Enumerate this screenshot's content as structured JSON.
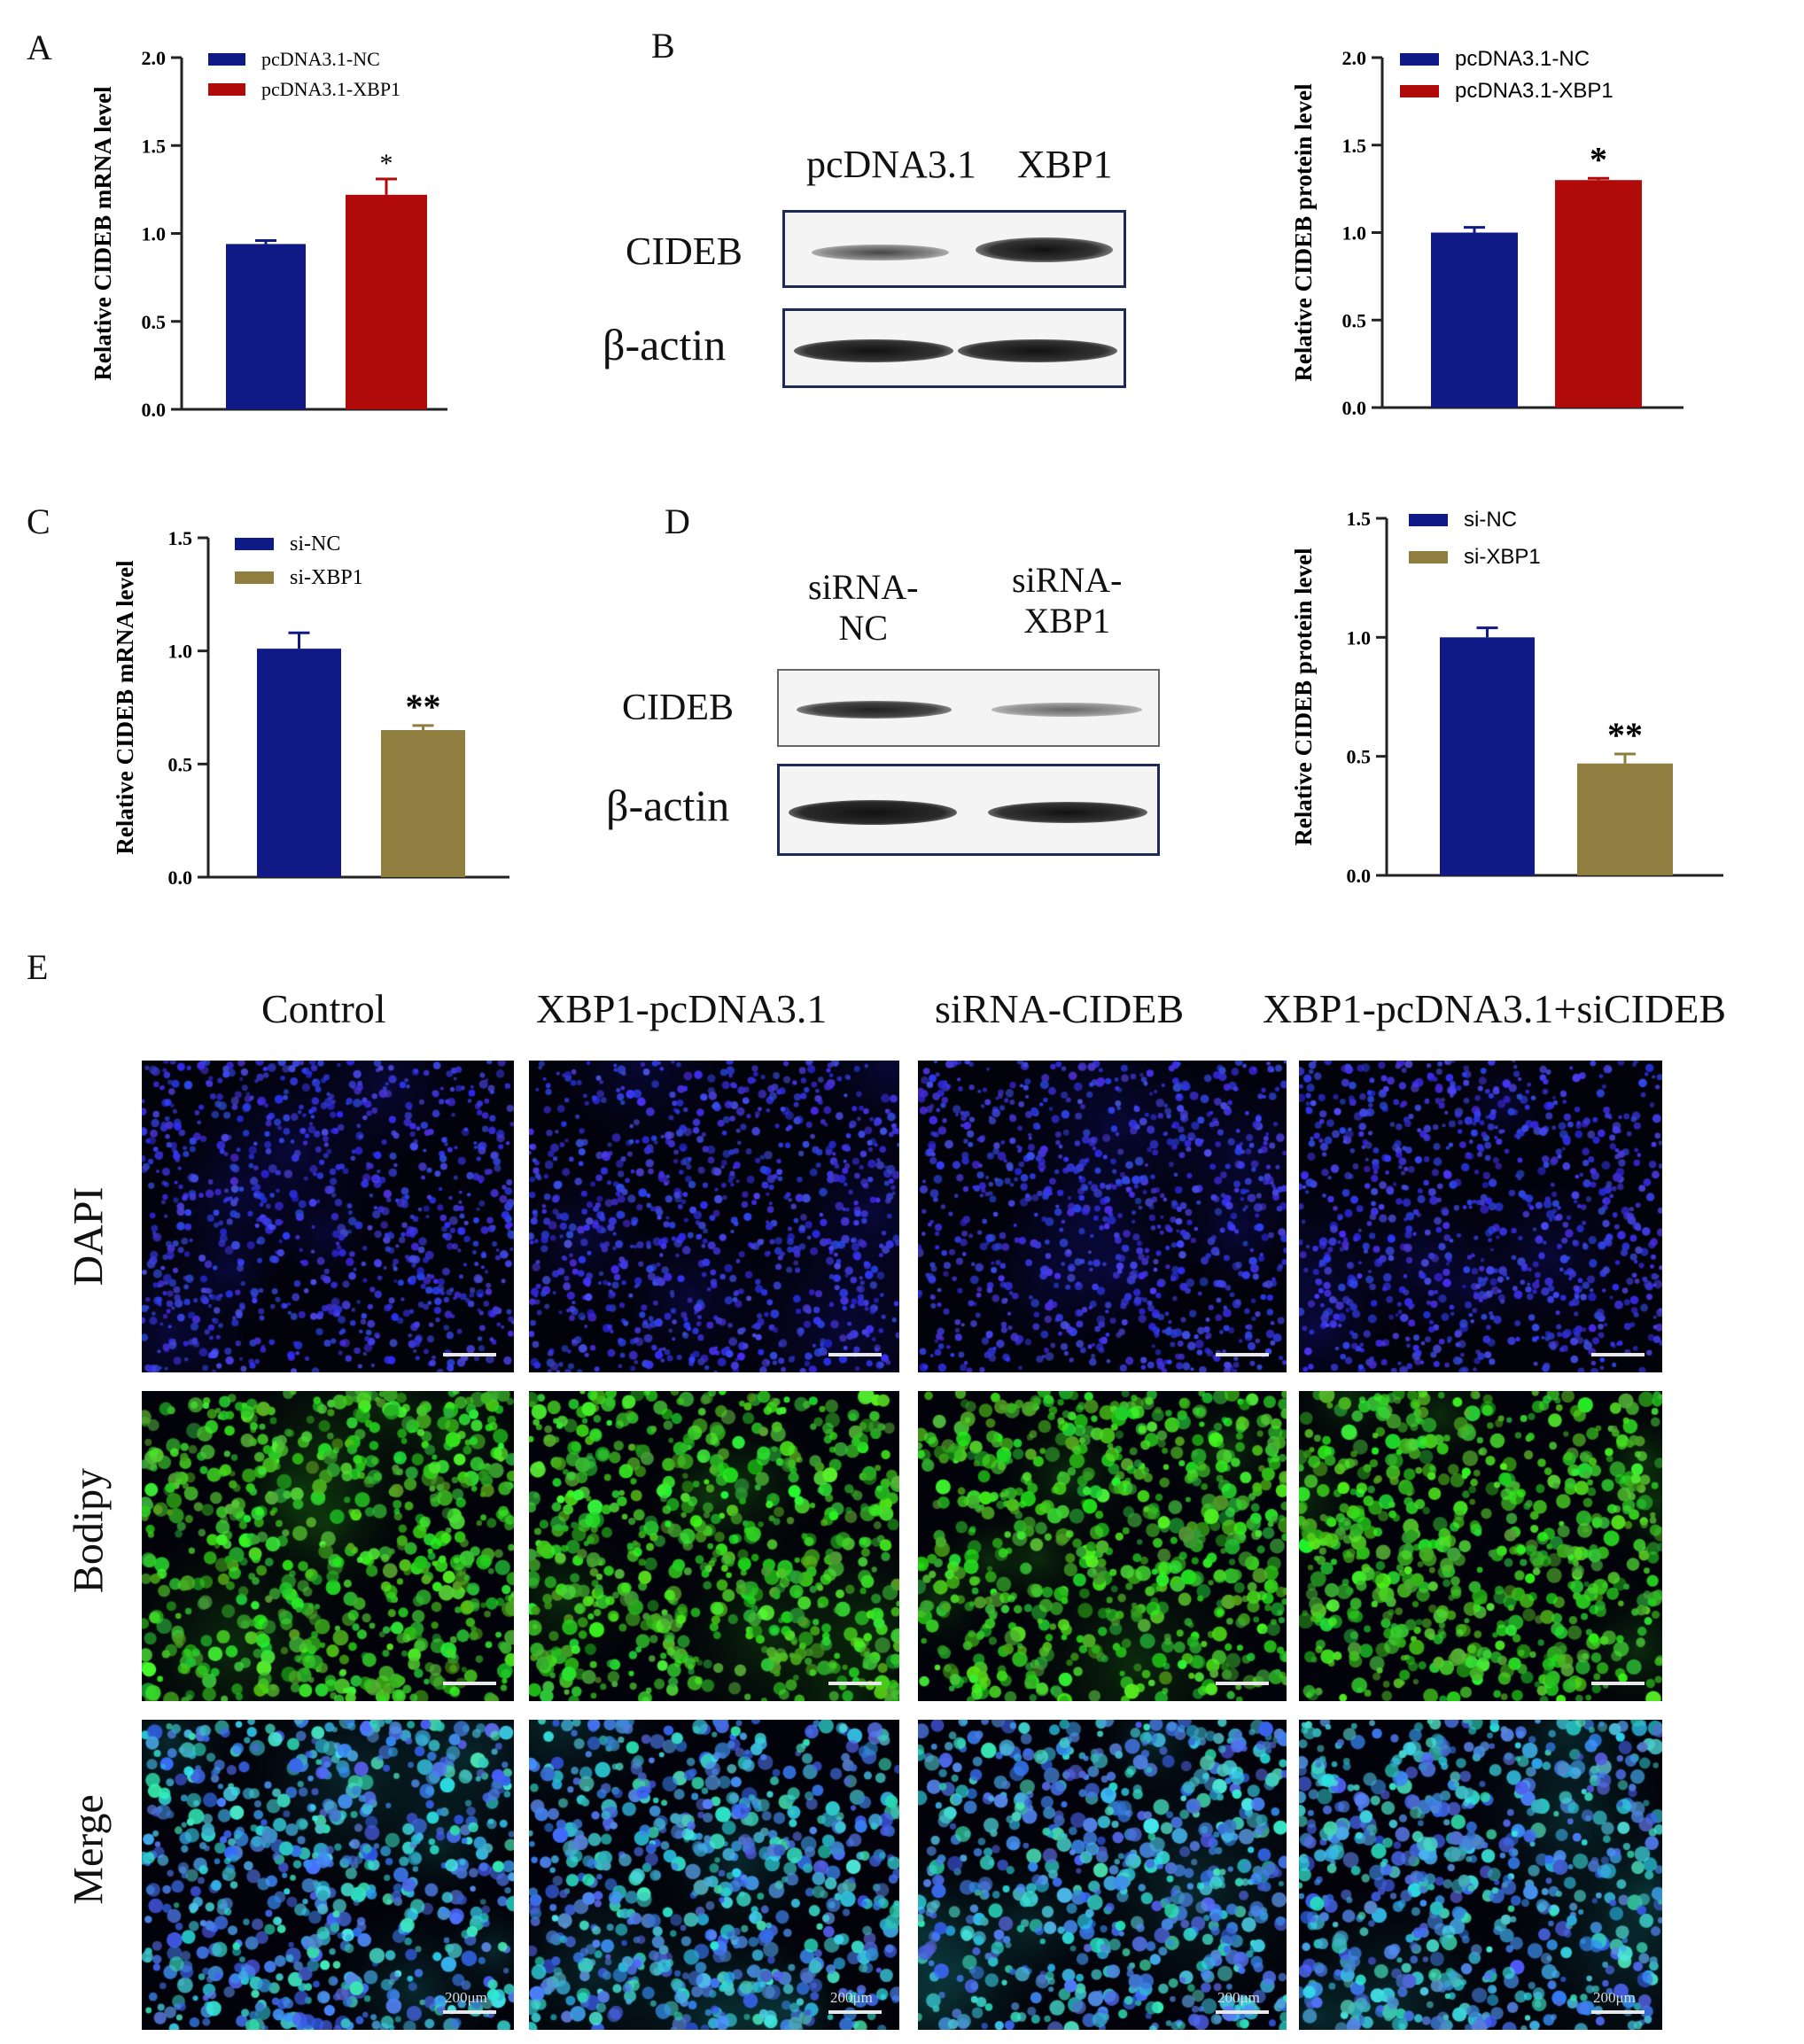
{
  "panel_labels": {
    "A": "A",
    "B": "B",
    "C": "C",
    "D": "D",
    "E": "E"
  },
  "colors": {
    "blue": "#0f1a86",
    "red": "#b00a0a",
    "olive": "#8f7e40"
  },
  "chart_data": [
    {
      "id": "A",
      "type": "bar",
      "ylabel": "Relative CIDEB mRNA level",
      "ylim": [
        0,
        2.0
      ],
      "yticks": [
        "0.0",
        "0.5",
        "1.0",
        "1.5",
        "2.0"
      ],
      "categories": [
        "pcDNA3.1-NC",
        "pcDNA3.1-XBP1"
      ],
      "values": [
        0.94,
        1.22
      ],
      "errors": [
        0.02,
        0.09
      ],
      "legend": [
        "pcDNA3.1-NC",
        "pcDNA3.1-XBP1"
      ],
      "significance": [
        "",
        "*"
      ]
    },
    {
      "id": "B",
      "type": "bar",
      "ylabel": "Relative CIDEB protein level",
      "ylim": [
        0,
        2.0
      ],
      "yticks": [
        "0.0",
        "0.5",
        "1.0",
        "1.5",
        "2.0"
      ],
      "categories": [
        "pcDNA3.1-NC",
        "pcDNA3.1-XBP1"
      ],
      "values": [
        1.0,
        1.3
      ],
      "errors": [
        0.03,
        0.01
      ],
      "legend": [
        "pcDNA3.1-NC",
        "pcDNA3.1-XBP1"
      ],
      "significance": [
        "",
        "*"
      ]
    },
    {
      "id": "C",
      "type": "bar",
      "ylabel": "Relative CIDEB mRNA level",
      "ylim": [
        0,
        1.5
      ],
      "yticks": [
        "0.0",
        "0.5",
        "1.0",
        "1.5"
      ],
      "categories": [
        "si-NC",
        "si-XBP1"
      ],
      "values": [
        1.01,
        0.65
      ],
      "errors": [
        0.07,
        0.02
      ],
      "legend": [
        "si-NC",
        "si-XBP1"
      ],
      "significance": [
        "",
        "**"
      ]
    },
    {
      "id": "D",
      "type": "bar",
      "ylabel": "Relative CIDEB protein level",
      "ylim": [
        0,
        1.5
      ],
      "yticks": [
        "0.0",
        "0.5",
        "1.0",
        "1.5"
      ],
      "categories": [
        "si-NC",
        "si-XBP1"
      ],
      "values": [
        1.0,
        0.47
      ],
      "errors": [
        0.04,
        0.04
      ],
      "legend": [
        "si-NC",
        "si-XBP1"
      ],
      "significance": [
        "",
        "**"
      ]
    }
  ],
  "blotB": {
    "lane1": "pcDNA3.1",
    "lane2": "XBP1",
    "row1": "CIDEB",
    "row2": "β-actin"
  },
  "blotD": {
    "lane1": "siRNA-\nNC",
    "lane2": "siRNA-\nXBP1",
    "row1": "CIDEB",
    "row2": "β-actin"
  },
  "micrograph": {
    "columns": [
      "Control",
      "XBP1-pcDNA3.1",
      "siRNA-CIDEB",
      "XBP1-pcDNA3.1+siCIDEB"
    ],
    "rows": [
      "DAPI",
      "Bodipy",
      "Merge"
    ],
    "scale_label": "200μm"
  }
}
